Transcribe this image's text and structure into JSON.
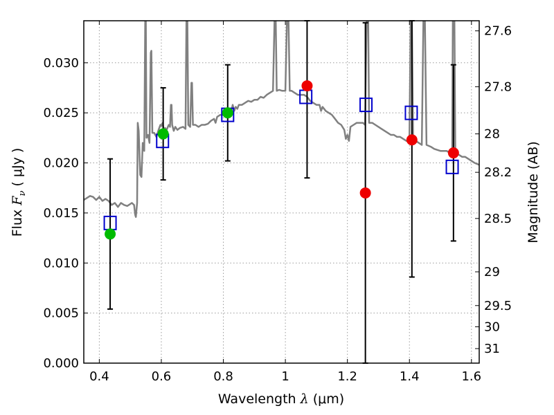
{
  "chart_data": {
    "type": "scatter",
    "title": "",
    "xlabel": "Wavelength",
    "xlabel_symbol": "λ",
    "xlabel_unit": "(μm)",
    "ylabel": "Flux",
    "ylabel_symbol": "F",
    "ylabel_sub": "ν",
    "ylabel_unit": "( μJy )",
    "ylabel_right": "Magnitude (AB)",
    "xlim": [
      0.35,
      1.625
    ],
    "ylim": [
      0.0,
      0.0342
    ],
    "grid": true,
    "x_ticks": [
      {
        "value": 0.4,
        "label": "0.4"
      },
      {
        "value": 0.6,
        "label": "0.6"
      },
      {
        "value": 0.8,
        "label": "0.8"
      },
      {
        "value": 1.0,
        "label": "1"
      },
      {
        "value": 1.2,
        "label": "1.2"
      },
      {
        "value": 1.4,
        "label": "1.4"
      },
      {
        "value": 1.6,
        "label": "1.6"
      }
    ],
    "y_ticks": [
      {
        "value": 0.0,
        "label": "0.000"
      },
      {
        "value": 0.005,
        "label": "0.005"
      },
      {
        "value": 0.01,
        "label": "0.010"
      },
      {
        "value": 0.015,
        "label": "0.015"
      },
      {
        "value": 0.02,
        "label": "0.020"
      },
      {
        "value": 0.025,
        "label": "0.025"
      },
      {
        "value": 0.03,
        "label": "0.030"
      }
    ],
    "right_ticks": [
      {
        "label": "27.6",
        "flux": 0.03319
      },
      {
        "label": "27.8",
        "flux": 0.02761
      },
      {
        "label": "28",
        "flux": 0.0229
      },
      {
        "label": "28.2",
        "flux": 0.01906
      },
      {
        "label": "28.5",
        "flux": 0.01445
      },
      {
        "label": "29",
        "flux": 0.00912
      },
      {
        "label": "29.5",
        "flux": 0.00575
      },
      {
        "label": "30",
        "flux": 0.00363
      },
      {
        "label": "31",
        "flux": 0.00145
      }
    ],
    "colors": {
      "spectrum": "#808080",
      "model": "#0000cc",
      "detection": "#00bb00",
      "upper": "#ee0000",
      "errorbar": "#000000",
      "grid": "#999999"
    },
    "model_points": [
      {
        "x": 0.435,
        "y": 0.014
      },
      {
        "x": 0.604,
        "y": 0.0222
      },
      {
        "x": 0.814,
        "y": 0.0248
      },
      {
        "x": 1.066,
        "y": 0.0266
      },
      {
        "x": 1.26,
        "y": 0.0258
      },
      {
        "x": 1.406,
        "y": 0.025
      },
      {
        "x": 1.538,
        "y": 0.0196
      }
    ],
    "observed_points": [
      {
        "x": 0.435,
        "y": 0.0129,
        "color": "detection",
        "err_low": 0.0054,
        "err_high": 0.0204
      },
      {
        "x": 0.606,
        "y": 0.0229,
        "color": "detection",
        "err_low": 0.0183,
        "err_high": 0.0275
      },
      {
        "x": 0.814,
        "y": 0.025,
        "color": "detection",
        "err_low": 0.0202,
        "err_high": 0.0298
      },
      {
        "x": 1.07,
        "y": 0.0277,
        "color": "upper",
        "err_low": 0.0185,
        "err_high": 0.0342
      },
      {
        "x": 1.258,
        "y": 0.017,
        "color": "upper",
        "err_low": 0.0,
        "err_high": 0.034
      },
      {
        "x": 1.408,
        "y": 0.0223,
        "color": "upper",
        "err_low": 0.0086,
        "err_high": 0.0342
      },
      {
        "x": 1.542,
        "y": 0.021,
        "color": "upper",
        "err_low": 0.0122,
        "err_high": 0.0298
      }
    ],
    "spectrum": [
      [
        0.35,
        0.0163
      ],
      [
        0.36,
        0.0165
      ],
      [
        0.37,
        0.0167
      ],
      [
        0.38,
        0.0166
      ],
      [
        0.39,
        0.0163
      ],
      [
        0.4,
        0.0166
      ],
      [
        0.41,
        0.0162
      ],
      [
        0.42,
        0.0164
      ],
      [
        0.43,
        0.0162
      ],
      [
        0.44,
        0.0158
      ],
      [
        0.45,
        0.016
      ],
      [
        0.46,
        0.0156
      ],
      [
        0.47,
        0.016
      ],
      [
        0.48,
        0.0158
      ],
      [
        0.49,
        0.0157
      ],
      [
        0.5,
        0.0159
      ],
      [
        0.505,
        0.016
      ],
      [
        0.512,
        0.0158
      ],
      [
        0.516,
        0.0148
      ],
      [
        0.518,
        0.0146
      ],
      [
        0.522,
        0.016
      ],
      [
        0.524,
        0.024
      ],
      [
        0.527,
        0.0232
      ],
      [
        0.532,
        0.0188
      ],
      [
        0.536,
        0.0186
      ],
      [
        0.54,
        0.022
      ],
      [
        0.545,
        0.0212
      ],
      [
        0.548,
        0.0342
      ],
      [
        0.55,
        0.0342
      ],
      [
        0.552,
        0.0225
      ],
      [
        0.557,
        0.0228
      ],
      [
        0.562,
        0.022
      ],
      [
        0.566,
        0.031
      ],
      [
        0.568,
        0.0312
      ],
      [
        0.571,
        0.023
      ],
      [
        0.577,
        0.023
      ],
      [
        0.584,
        0.0226
      ],
      [
        0.59,
        0.0232
      ],
      [
        0.597,
        0.0238
      ],
      [
        0.6,
        0.0237
      ],
      [
        0.604,
        0.024
      ],
      [
        0.608,
        0.0232
      ],
      [
        0.612,
        0.0235
      ],
      [
        0.617,
        0.0233
      ],
      [
        0.624,
        0.0238
      ],
      [
        0.628,
        0.0236
      ],
      [
        0.631,
        0.0258
      ],
      [
        0.633,
        0.0258
      ],
      [
        0.635,
        0.0238
      ],
      [
        0.64,
        0.0232
      ],
      [
        0.645,
        0.0236
      ],
      [
        0.652,
        0.0233
      ],
      [
        0.66,
        0.0235
      ],
      [
        0.67,
        0.0236
      ],
      [
        0.678,
        0.0234
      ],
      [
        0.681,
        0.0342
      ],
      [
        0.684,
        0.0342
      ],
      [
        0.687,
        0.0238
      ],
      [
        0.693,
        0.0236
      ],
      [
        0.697,
        0.028
      ],
      [
        0.699,
        0.028
      ],
      [
        0.702,
        0.0238
      ],
      [
        0.71,
        0.0238
      ],
      [
        0.72,
        0.0236
      ],
      [
        0.73,
        0.0238
      ],
      [
        0.74,
        0.0238
      ],
      [
        0.75,
        0.0239
      ],
      [
        0.76,
        0.0242
      ],
      [
        0.77,
        0.0244
      ],
      [
        0.775,
        0.024
      ],
      [
        0.78,
        0.0246
      ],
      [
        0.79,
        0.0248
      ],
      [
        0.8,
        0.0248
      ],
      [
        0.81,
        0.025
      ],
      [
        0.815,
        0.0248
      ],
      [
        0.82,
        0.0248
      ],
      [
        0.826,
        0.0252
      ],
      [
        0.83,
        0.0258
      ],
      [
        0.835,
        0.0252
      ],
      [
        0.84,
        0.0256
      ],
      [
        0.845,
        0.0254
      ],
      [
        0.85,
        0.0258
      ],
      [
        0.86,
        0.0258
      ],
      [
        0.87,
        0.026
      ],
      [
        0.88,
        0.0262
      ],
      [
        0.89,
        0.0261
      ],
      [
        0.9,
        0.0263
      ],
      [
        0.91,
        0.0263
      ],
      [
        0.92,
        0.0266
      ],
      [
        0.93,
        0.0265
      ],
      [
        0.94,
        0.0268
      ],
      [
        0.95,
        0.027
      ],
      [
        0.96,
        0.0272
      ],
      [
        0.965,
        0.0342
      ],
      [
        0.969,
        0.0342
      ],
      [
        0.972,
        0.0272
      ],
      [
        0.98,
        0.0273
      ],
      [
        0.99,
        0.0272
      ],
      [
        1.0,
        0.0272
      ],
      [
        1.005,
        0.0342
      ],
      [
        1.01,
        0.0342
      ],
      [
        1.014,
        0.0272
      ],
      [
        1.02,
        0.0272
      ],
      [
        1.03,
        0.027
      ],
      [
        1.04,
        0.0268
      ],
      [
        1.05,
        0.0268
      ],
      [
        1.06,
        0.0268
      ],
      [
        1.07,
        0.0266
      ],
      [
        1.08,
        0.0262
      ],
      [
        1.09,
        0.026
      ],
      [
        1.1,
        0.0258
      ],
      [
        1.11,
        0.0258
      ],
      [
        1.115,
        0.0252
      ],
      [
        1.12,
        0.0256
      ],
      [
        1.13,
        0.0252
      ],
      [
        1.14,
        0.025
      ],
      [
        1.15,
        0.0248
      ],
      [
        1.16,
        0.0244
      ],
      [
        1.17,
        0.024
      ],
      [
        1.18,
        0.0238
      ],
      [
        1.19,
        0.0233
      ],
      [
        1.195,
        0.0224
      ],
      [
        1.2,
        0.0228
      ],
      [
        1.205,
        0.0222
      ],
      [
        1.21,
        0.0236
      ],
      [
        1.22,
        0.0238
      ],
      [
        1.23,
        0.024
      ],
      [
        1.24,
        0.024
      ],
      [
        1.25,
        0.024
      ],
      [
        1.257,
        0.0238
      ],
      [
        1.262,
        0.0342
      ],
      [
        1.267,
        0.0342
      ],
      [
        1.27,
        0.024
      ],
      [
        1.28,
        0.024
      ],
      [
        1.29,
        0.0238
      ],
      [
        1.3,
        0.0236
      ],
      [
        1.31,
        0.0234
      ],
      [
        1.32,
        0.0232
      ],
      [
        1.33,
        0.023
      ],
      [
        1.34,
        0.0228
      ],
      [
        1.35,
        0.0228
      ],
      [
        1.36,
        0.0226
      ],
      [
        1.37,
        0.0226
      ],
      [
        1.38,
        0.0224
      ],
      [
        1.39,
        0.0222
      ],
      [
        1.4,
        0.0222
      ],
      [
        1.404,
        0.0342
      ],
      [
        1.408,
        0.0342
      ],
      [
        1.412,
        0.0222
      ],
      [
        1.42,
        0.0222
      ],
      [
        1.43,
        0.022
      ],
      [
        1.44,
        0.0218
      ],
      [
        1.445,
        0.0342
      ],
      [
        1.45,
        0.0342
      ],
      [
        1.455,
        0.0218
      ],
      [
        1.47,
        0.0216
      ],
      [
        1.48,
        0.0214
      ],
      [
        1.5,
        0.0212
      ],
      [
        1.51,
        0.0212
      ],
      [
        1.52,
        0.0212
      ],
      [
        1.53,
        0.021
      ],
      [
        1.538,
        0.0212
      ],
      [
        1.54,
        0.0342
      ],
      [
        1.545,
        0.0342
      ],
      [
        1.548,
        0.021
      ],
      [
        1.56,
        0.0208
      ],
      [
        1.57,
        0.0206
      ],
      [
        1.58,
        0.0206
      ],
      [
        1.59,
        0.0204
      ],
      [
        1.6,
        0.0202
      ],
      [
        1.61,
        0.02
      ],
      [
        1.625,
        0.0198
      ]
    ]
  }
}
